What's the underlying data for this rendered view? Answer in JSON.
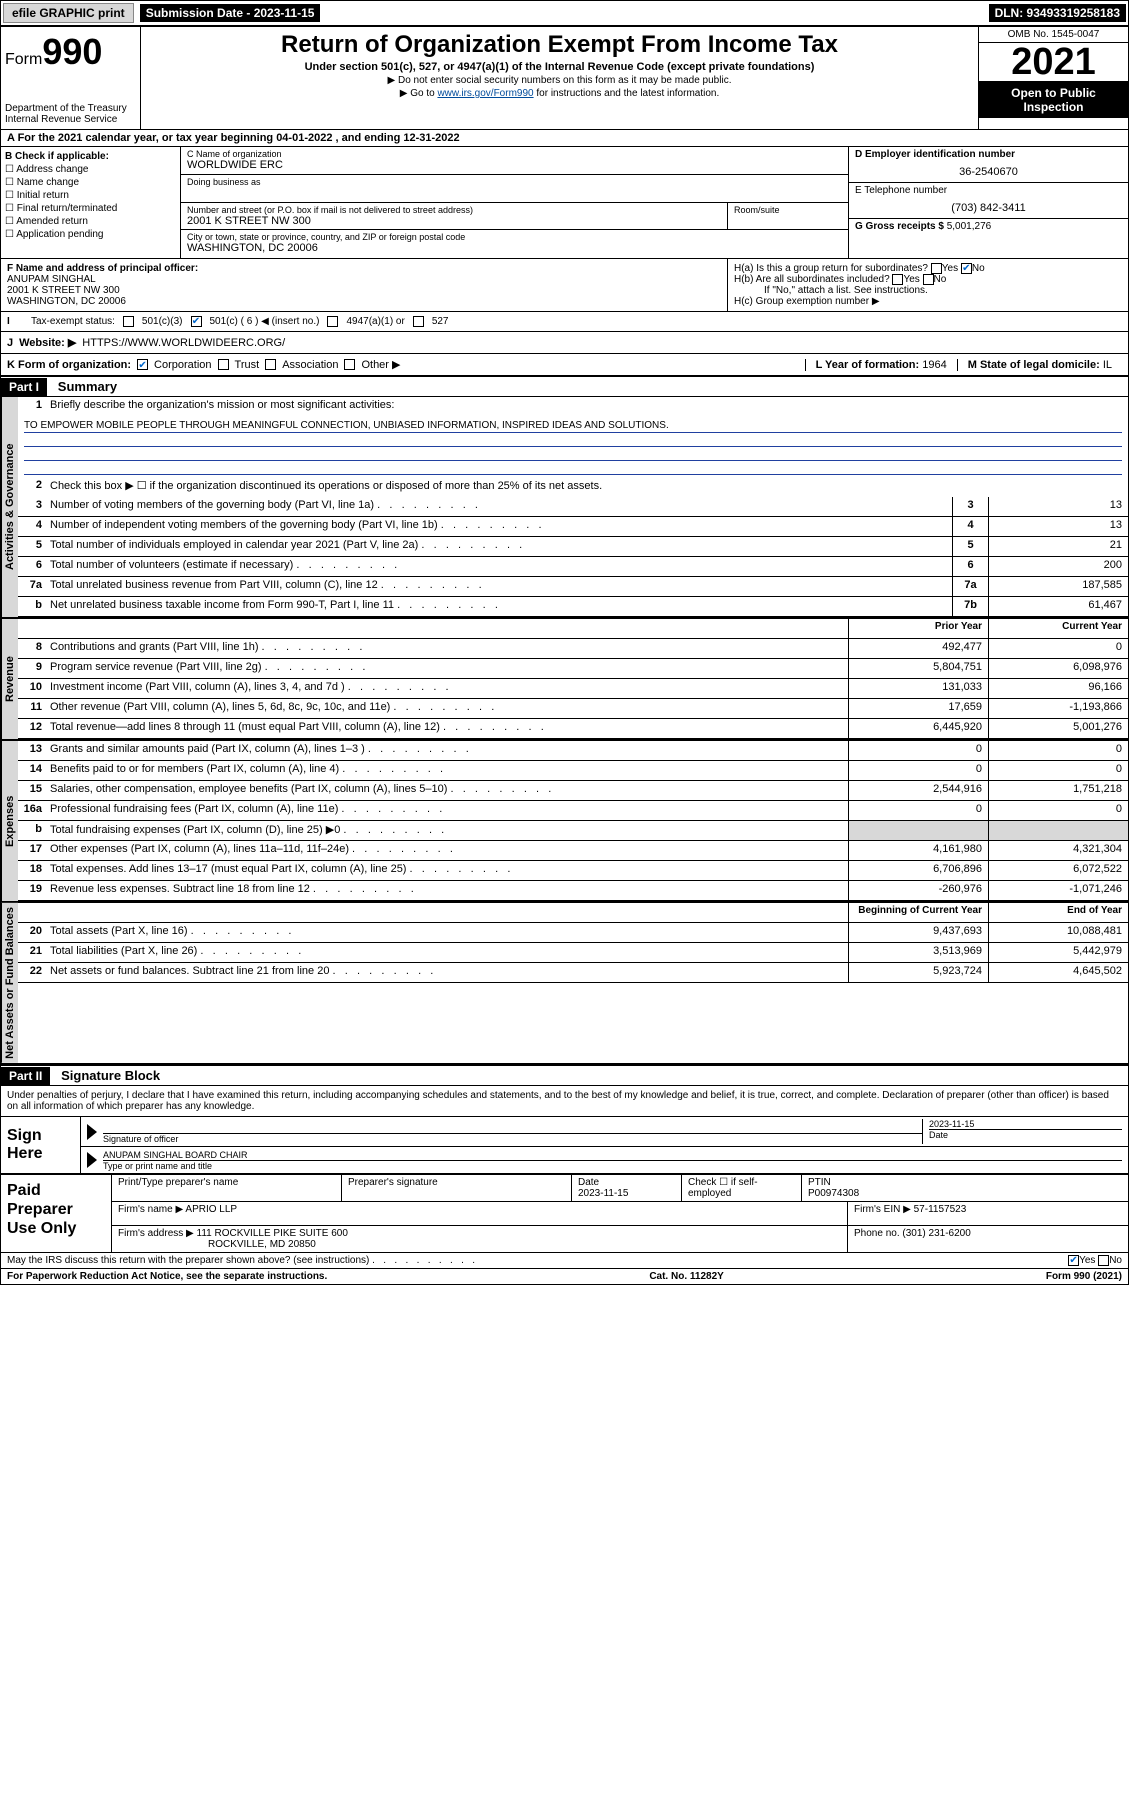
{
  "topbar": {
    "efile": "efile GRAPHIC print",
    "sub_label": "Submission Date - 2023-11-15",
    "dln": "DLN: 93493319258183"
  },
  "header": {
    "form_word": "Form",
    "form_num": "990",
    "dept": "Department of the Treasury",
    "irs": "Internal Revenue Service",
    "title": "Return of Organization Exempt From Income Tax",
    "sub": "Under section 501(c), 527, or 4947(a)(1) of the Internal Revenue Code (except private foundations)",
    "note1": "Do not enter social security numbers on this form as it may be made public.",
    "note2_pre": "Go to ",
    "note2_link": "www.irs.gov/Form990",
    "note2_post": " for instructions and the latest information.",
    "omb": "OMB No. 1545-0047",
    "year": "2021",
    "inspect": "Open to Public Inspection"
  },
  "row_a": "A For the 2021 calendar year, or tax year beginning 04-01-2022   , and ending 12-31-2022",
  "col_b": {
    "title": "B Check if applicable:",
    "opts": [
      "Address change",
      "Name change",
      "Initial return",
      "Final return/terminated",
      "Amended return",
      "Application pending"
    ]
  },
  "col_c": {
    "name_lbl": "C Name of organization",
    "name": "WORLDWIDE ERC",
    "dba_lbl": "Doing business as",
    "addr_lbl": "Number and street (or P.O. box if mail is not delivered to street address)",
    "room_lbl": "Room/suite",
    "addr": "2001 K STREET NW 300",
    "city_lbl": "City or town, state or province, country, and ZIP or foreign postal code",
    "city": "WASHINGTON, DC  20006"
  },
  "col_d": {
    "lbl": "D Employer identification number",
    "val": "36-2540670"
  },
  "col_e": {
    "lbl": "E Telephone number",
    "val": "(703) 842-3411"
  },
  "col_g": {
    "lbl": "G Gross receipts $",
    "val": "5,001,276"
  },
  "officer": {
    "lbl": "F Name and address of principal officer:",
    "name": "ANUPAM SINGHAL",
    "addr1": "2001 K STREET NW 300",
    "addr2": "WASHINGTON, DC  20006"
  },
  "h": {
    "ha": "H(a)  Is this a group return for subordinates?",
    "hb": "H(b)  Are all subordinates included?",
    "hb_note": "If \"No,\" attach a list. See instructions.",
    "hc": "H(c)  Group exemption number ▶"
  },
  "status": {
    "lbl": "Tax-exempt status:",
    "o1": "501(c)(3)",
    "o2": "501(c) ( 6 ) ◀ (insert no.)",
    "o3": "4947(a)(1) or",
    "o4": "527"
  },
  "website": {
    "lbl": "Website: ▶",
    "val": "HTTPS://WWW.WORLDWIDEERC.ORG/"
  },
  "korg": {
    "lbl": "K Form of organization:",
    "o1": "Corporation",
    "o2": "Trust",
    "o3": "Association",
    "o4": "Other ▶",
    "l_lbl": "L Year of formation:",
    "l_val": "1964",
    "m_lbl": "M State of legal domicile:",
    "m_val": "IL"
  },
  "part1": {
    "hdr": "Part I",
    "title": "Summary"
  },
  "mission": {
    "q": "Briefly describe the organization's mission or most significant activities:",
    "text": "TO EMPOWER MOBILE PEOPLE THROUGH MEANINGFUL CONNECTION, UNBIASED INFORMATION, INSPIRED IDEAS AND SOLUTIONS."
  },
  "lines_gov": [
    {
      "n": "2",
      "d": "Check this box ▶ ☐  if the organization discontinued its operations or disposed of more than 25% of its net assets."
    },
    {
      "n": "3",
      "d": "Number of voting members of the governing body (Part VI, line 1a)",
      "c": "3",
      "v": "13"
    },
    {
      "n": "4",
      "d": "Number of independent voting members of the governing body (Part VI, line 1b)",
      "c": "4",
      "v": "13"
    },
    {
      "n": "5",
      "d": "Total number of individuals employed in calendar year 2021 (Part V, line 2a)",
      "c": "5",
      "v": "21"
    },
    {
      "n": "6",
      "d": "Total number of volunteers (estimate if necessary)",
      "c": "6",
      "v": "200"
    },
    {
      "n": "7a",
      "d": "Total unrelated business revenue from Part VIII, column (C), line 12",
      "c": "7a",
      "v": "187,585"
    },
    {
      "n": "b",
      "d": "Net unrelated business taxable income from Form 990-T, Part I, line 11",
      "c": "7b",
      "v": "61,467"
    }
  ],
  "col_hdrs": {
    "py": "Prior Year",
    "cy": "Current Year"
  },
  "lines_rev": [
    {
      "n": "8",
      "d": "Contributions and grants (Part VIII, line 1h)",
      "py": "492,477",
      "cy": "0"
    },
    {
      "n": "9",
      "d": "Program service revenue (Part VIII, line 2g)",
      "py": "5,804,751",
      "cy": "6,098,976"
    },
    {
      "n": "10",
      "d": "Investment income (Part VIII, column (A), lines 3, 4, and 7d )",
      "py": "131,033",
      "cy": "96,166"
    },
    {
      "n": "11",
      "d": "Other revenue (Part VIII, column (A), lines 5, 6d, 8c, 9c, 10c, and 11e)",
      "py": "17,659",
      "cy": "-1,193,866"
    },
    {
      "n": "12",
      "d": "Total revenue—add lines 8 through 11 (must equal Part VIII, column (A), line 12)",
      "py": "6,445,920",
      "cy": "5,001,276"
    }
  ],
  "lines_exp": [
    {
      "n": "13",
      "d": "Grants and similar amounts paid (Part IX, column (A), lines 1–3 )",
      "py": "0",
      "cy": "0"
    },
    {
      "n": "14",
      "d": "Benefits paid to or for members (Part IX, column (A), line 4)",
      "py": "0",
      "cy": "0"
    },
    {
      "n": "15",
      "d": "Salaries, other compensation, employee benefits (Part IX, column (A), lines 5–10)",
      "py": "2,544,916",
      "cy": "1,751,218"
    },
    {
      "n": "16a",
      "d": "Professional fundraising fees (Part IX, column (A), line 11e)",
      "py": "0",
      "cy": "0"
    },
    {
      "n": "b",
      "d": "Total fundraising expenses (Part IX, column (D), line 25) ▶0",
      "py": "",
      "cy": "",
      "gray": true
    },
    {
      "n": "17",
      "d": "Other expenses (Part IX, column (A), lines 11a–11d, 11f–24e)",
      "py": "4,161,980",
      "cy": "4,321,304"
    },
    {
      "n": "18",
      "d": "Total expenses. Add lines 13–17 (must equal Part IX, column (A), line 25)",
      "py": "6,706,896",
      "cy": "6,072,522"
    },
    {
      "n": "19",
      "d": "Revenue less expenses. Subtract line 18 from line 12",
      "py": "-260,976",
      "cy": "-1,071,246"
    }
  ],
  "col_hdrs2": {
    "b": "Beginning of Current Year",
    "e": "End of Year"
  },
  "lines_net": [
    {
      "n": "20",
      "d": "Total assets (Part X, line 16)",
      "py": "9,437,693",
      "cy": "10,088,481"
    },
    {
      "n": "21",
      "d": "Total liabilities (Part X, line 26)",
      "py": "3,513,969",
      "cy": "5,442,979"
    },
    {
      "n": "22",
      "d": "Net assets or fund balances. Subtract line 21 from line 20",
      "py": "5,923,724",
      "cy": "4,645,502"
    }
  ],
  "vtabs": {
    "gov": "Activities & Governance",
    "rev": "Revenue",
    "exp": "Expenses",
    "net": "Net Assets or Fund Balances"
  },
  "part2": {
    "hdr": "Part II",
    "title": "Signature Block"
  },
  "sig_intro": "Under penalties of perjury, I declare that I have examined this return, including accompanying schedules and statements, and to the best of my knowledge and belief, it is true, correct, and complete. Declaration of preparer (other than officer) is based on all information of which preparer has any knowledge.",
  "sign": {
    "here": "Sign Here",
    "sig_lbl": "Signature of officer",
    "date_lbl": "Date",
    "date": "2023-11-15",
    "name": "ANUPAM SINGHAL  BOARD CHAIR",
    "name_lbl": "Type or print name and title"
  },
  "paid": {
    "title": "Paid Preparer Use Only",
    "h1": "Print/Type preparer's name",
    "h2": "Preparer's signature",
    "h3": "Date",
    "h3v": "2023-11-15",
    "h4": "Check ☐ if self-employed",
    "h5": "PTIN",
    "h5v": "P00974308",
    "firm_lbl": "Firm's name    ▶",
    "firm": "APRIO LLP",
    "ein_lbl": "Firm's EIN ▶",
    "ein": "57-1157523",
    "addr_lbl": "Firm's address ▶",
    "addr1": "111 ROCKVILLE PIKE SUITE 600",
    "addr2": "ROCKVILLE, MD  20850",
    "phone_lbl": "Phone no.",
    "phone": "(301) 231-6200"
  },
  "discuss": "May the IRS discuss this return with the preparer shown above? (see instructions)",
  "footer": {
    "pra": "For Paperwork Reduction Act Notice, see the separate instructions.",
    "cat": "Cat. No. 11282Y",
    "form": "Form 990 (2021)"
  }
}
